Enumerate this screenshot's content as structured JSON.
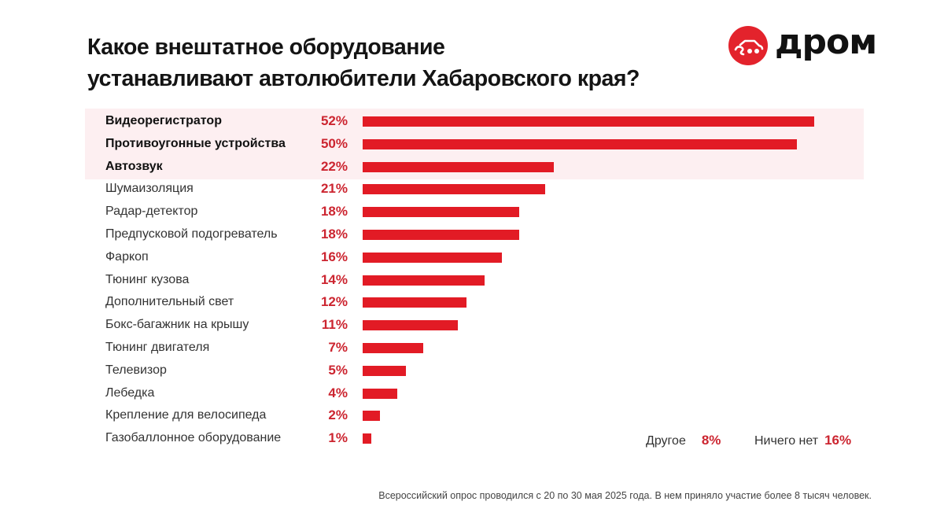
{
  "header": {
    "title_line1": "Какое внештатное оборудование",
    "title_line2": "устанавливают автолюбители Хабаровского края?",
    "logo_text": "дром",
    "logo_icon": "car-circle-icon"
  },
  "colors": {
    "bar": "#e21b25",
    "value_text": "#cc2530",
    "highlight_band": "#fdeff1",
    "logo_red": "#e3232c"
  },
  "chart_data": {
    "type": "bar",
    "orientation": "horizontal",
    "title": "Какое внештатное оборудование устанавливают автолюбители Хабаровского края?",
    "xlabel": "",
    "ylabel": "",
    "unit": "%",
    "xlim": [
      0,
      52
    ],
    "grid": false,
    "categories": [
      "Видеорегистратор",
      "Противоугонные устройства",
      "Автозвук",
      "Шумаизоляция",
      "Радар-детектор",
      "Предпусковой подогреватель",
      "Фаркоп",
      "Тюнинг кузова",
      "Дополнительный свет",
      "Бокс-багажник на крышу",
      "Тюнинг двигателя",
      "Телевизор",
      "Лебедка",
      "Крепление для велосипеда",
      "Газобаллонное оборудование"
    ],
    "values": [
      52,
      50,
      22,
      21,
      18,
      18,
      16,
      14,
      12,
      11,
      7,
      5,
      4,
      2,
      1
    ],
    "value_labels": [
      "52%",
      "50%",
      "22%",
      "21%",
      "18%",
      "18%",
      "16%",
      "14%",
      "12%",
      "11%",
      "7%",
      "5%",
      "4%",
      "2%",
      "1%"
    ],
    "highlighted_top": 3,
    "extra_items": [
      {
        "label": "Другое",
        "value": 8,
        "value_label": "8%"
      },
      {
        "label": "Ничего нет",
        "value": 16,
        "value_label": "16%"
      }
    ]
  },
  "footnote": "Всероссийский опрос проводился с 20 по 30 мая 2025 года. В нем приняло участие более 8 тысяч человек."
}
